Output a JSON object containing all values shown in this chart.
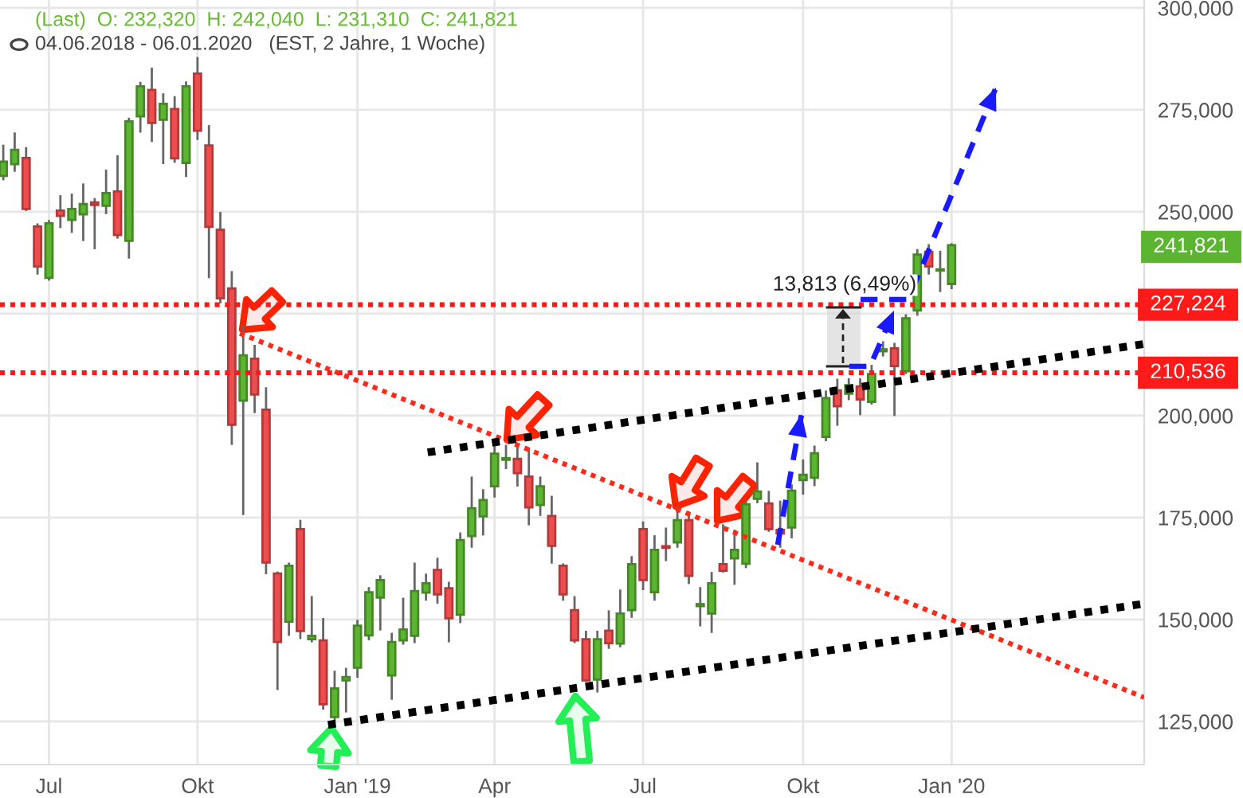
{
  "chart_data": {
    "type": "candlestick",
    "title": "(Last)  O: 232,320  H: 242,040  L: 231,310  C: 241,821",
    "subtitle": "04.06.2018 - 06.01.2020   (EST, 2 Jahre, 1 Woche)",
    "x": [
      "2018-06-04",
      "2018-06-11",
      "2018-06-18",
      "2018-06-25",
      "2018-07-02",
      "2018-07-09",
      "2018-07-16",
      "2018-07-23",
      "2018-07-30",
      "2018-08-06",
      "2018-08-13",
      "2018-08-20",
      "2018-08-27",
      "2018-09-03",
      "2018-09-10",
      "2018-09-17",
      "2018-09-24",
      "2018-10-01",
      "2018-10-08",
      "2018-10-15",
      "2018-10-22",
      "2018-10-29",
      "2018-11-05",
      "2018-11-12",
      "2018-11-19",
      "2018-11-26",
      "2018-12-03",
      "2018-12-10",
      "2018-12-17",
      "2018-12-24",
      "2018-12-31",
      "2019-01-07",
      "2019-01-14",
      "2019-01-21",
      "2019-01-28",
      "2019-02-04",
      "2019-02-11",
      "2019-02-18",
      "2019-02-25",
      "2019-03-04",
      "2019-03-11",
      "2019-03-18",
      "2019-03-25",
      "2019-04-01",
      "2019-04-08",
      "2019-04-15",
      "2019-04-22",
      "2019-04-29",
      "2019-05-06",
      "2019-05-13",
      "2019-05-20",
      "2019-05-27",
      "2019-06-03",
      "2019-06-10",
      "2019-06-17",
      "2019-06-24",
      "2019-07-01",
      "2019-07-08",
      "2019-07-15",
      "2019-07-22",
      "2019-07-29",
      "2019-08-05",
      "2019-08-12",
      "2019-08-19",
      "2019-08-26",
      "2019-09-02",
      "2019-09-09",
      "2019-09-16",
      "2019-09-23",
      "2019-09-30",
      "2019-10-07",
      "2019-10-14",
      "2019-10-21",
      "2019-10-28",
      "2019-11-04",
      "2019-11-11",
      "2019-11-18",
      "2019-11-25",
      "2019-12-02",
      "2019-12-09",
      "2019-12-16",
      "2019-12-23",
      "2019-12-30",
      "2020-01-06"
    ],
    "ohlc": [
      [
        258800,
        266200,
        258000,
        262300
      ],
      [
        261700,
        269200,
        260100,
        265200
      ],
      [
        263200,
        265600,
        250500,
        250700
      ],
      [
        246400,
        246900,
        234900,
        236600
      ],
      [
        233800,
        247700,
        233400,
        247200
      ],
      [
        250300,
        253800,
        246300,
        249000
      ],
      [
        248000,
        254200,
        245100,
        250700
      ],
      [
        249400,
        256700,
        243100,
        251900
      ],
      [
        252300,
        253100,
        241100,
        251700
      ],
      [
        251500,
        260100,
        249700,
        254600
      ],
      [
        255000,
        263600,
        243700,
        244300
      ],
      [
        242900,
        272800,
        238800,
        272200
      ],
      [
        273400,
        281600,
        269700,
        280800
      ],
      [
        279900,
        285100,
        267400,
        271800
      ],
      [
        272600,
        278800,
        262000,
        276500
      ],
      [
        275200,
        278100,
        262300,
        263100
      ],
      [
        262000,
        281700,
        258800,
        280800
      ],
      [
        283900,
        287700,
        267900,
        269900
      ],
      [
        266300,
        271000,
        234000,
        246300
      ],
      [
        245600,
        249700,
        227800,
        228800
      ],
      [
        231200,
        235200,
        193100,
        197800
      ],
      [
        203700,
        221900,
        175900,
        214800
      ],
      [
        214000,
        217100,
        200900,
        205200
      ],
      [
        201500,
        206700,
        161400,
        164000
      ],
      [
        161300,
        161500,
        133000,
        144500
      ],
      [
        149500,
        163700,
        146300,
        163200
      ],
      [
        172200,
        174200,
        145500,
        147200
      ],
      [
        145200,
        155500,
        144700,
        146000
      ],
      [
        144900,
        150100,
        128200,
        129200
      ],
      [
        126100,
        137200,
        124700,
        133100
      ],
      [
        135100,
        137900,
        127500,
        135900
      ],
      [
        138200,
        149700,
        136000,
        148500
      ],
      [
        146100,
        157700,
        145200,
        156700
      ],
      [
        155400,
        160600,
        147600,
        159700
      ],
      [
        136300,
        146500,
        130600,
        144500
      ],
      [
        144900,
        155100,
        144100,
        147600
      ],
      [
        146000,
        163700,
        144500,
        157000
      ],
      [
        156600,
        161000,
        154900,
        158900
      ],
      [
        162200,
        164900,
        154200,
        156200
      ],
      [
        157700,
        159000,
        144700,
        150300
      ],
      [
        151200,
        171100,
        149400,
        169500
      ],
      [
        170500,
        184800,
        167900,
        177300
      ],
      [
        175300,
        181700,
        170900,
        179300
      ],
      [
        182700,
        192400,
        180200,
        190700
      ],
      [
        189200,
        192600,
        187200,
        189600
      ],
      [
        189400,
        191900,
        182900,
        185900
      ],
      [
        185100,
        191900,
        173400,
        177500
      ],
      [
        178100,
        184800,
        175700,
        182700
      ],
      [
        175400,
        180100,
        164000,
        168100
      ],
      [
        163200,
        163500,
        154900,
        156200
      ],
      [
        152300,
        155500,
        144500,
        144900
      ],
      [
        145200,
        147000,
        135000,
        135100
      ],
      [
        135300,
        147000,
        132400,
        145200
      ],
      [
        147300,
        152000,
        143100,
        144200
      ],
      [
        144100,
        157100,
        143500,
        151500
      ],
      [
        152300,
        165300,
        150700,
        163600
      ],
      [
        172200,
        173800,
        157500,
        159700
      ],
      [
        156700,
        170400,
        154900,
        167100
      ],
      [
        168000,
        172300,
        164600,
        167600
      ],
      [
        168900,
        177700,
        167900,
        174400
      ],
      [
        174400,
        176300,
        159000,
        160700
      ],
      [
        153300,
        157700,
        148600,
        153800
      ],
      [
        151500,
        161400,
        147000,
        158900
      ],
      [
        163600,
        173100,
        161800,
        162000
      ],
      [
        165000,
        171800,
        158800,
        167100
      ],
      [
        163700,
        178900,
        162900,
        178300
      ],
      [
        179600,
        188300,
        178800,
        181400
      ],
      [
        178500,
        181300,
        171800,
        172200
      ],
      [
        172000,
        178900,
        167900,
        171100
      ],
      [
        172600,
        182900,
        170200,
        181600
      ],
      [
        184200,
        189000,
        180900,
        185500
      ],
      [
        184800,
        192400,
        183000,
        190800
      ],
      [
        194800,
        205900,
        194000,
        204300
      ],
      [
        206200,
        208800,
        197800,
        202300
      ],
      [
        205400,
        208900,
        204100,
        207500
      ],
      [
        207200,
        208900,
        200400,
        204000
      ],
      [
        203400,
        212200,
        203000,
        210200
      ],
      [
        215800,
        218000,
        214800,
        216300
      ],
      [
        216500,
        217600,
        200200,
        212200
      ],
      [
        210900,
        224600,
        210500,
        223900
      ],
      [
        225800,
        240600,
        224800,
        239500
      ],
      [
        240200,
        241800,
        234900,
        236600
      ],
      [
        235600,
        240200,
        230600,
        235900
      ],
      [
        232320,
        242040,
        231310,
        241821
      ]
    ],
    "colors": [
      "#5cb531",
      "#5cb531",
      "#ef4d4d",
      "#ef4d4d",
      "#5cb531",
      "#ef4d4d",
      "#5cb531",
      "#5cb531",
      "#ef4d4d",
      "#5cb531",
      "#ef4d4d",
      "#5cb531",
      "#5cb531",
      "#ef4d4d",
      "#5cb531",
      "#ef4d4d",
      "#5cb531",
      "#ef4d4d",
      "#ef4d4d",
      "#ef4d4d",
      "#ef4d4d",
      "#5cb531",
      "#ef4d4d",
      "#ef4d4d",
      "#ef4d4d",
      "#5cb531",
      "#ef4d4d",
      "#5cb531",
      "#ef4d4d",
      "#5cb531",
      "#5cb531",
      "#5cb531",
      "#5cb531",
      "#5cb531",
      "#5cb531",
      "#5cb531",
      "#5cb531",
      "#5cb531",
      "#ef4d4d",
      "#ef4d4d",
      "#5cb531",
      "#5cb531",
      "#5cb531",
      "#5cb531",
      "#5cb531",
      "#ef4d4d",
      "#ef4d4d",
      "#5cb531",
      "#ef4d4d",
      "#ef4d4d",
      "#ef4d4d",
      "#ef4d4d",
      "#5cb531",
      "#ef4d4d",
      "#5cb531",
      "#5cb531",
      "#ef4d4d",
      "#5cb531",
      "#ef4d4d",
      "#5cb531",
      "#ef4d4d",
      "#5cb531",
      "#5cb531",
      "#ef4d4d",
      "#5cb531",
      "#5cb531",
      "#5cb531",
      "#ef4d4d",
      "#ef4d4d",
      "#5cb531",
      "#5cb531",
      "#5cb531",
      "#5cb531",
      "#ef4d4d",
      "#5cb531",
      "#ef4d4d",
      "#5cb531",
      "#5cb531",
      "#ef4d4d",
      "#5cb531",
      "#5cb531",
      "#ef4d4d",
      "#5cb531",
      "#5cb531"
    ],
    "series": [
      {
        "type": "line",
        "color": "#ff2a1a",
        "line_style": "dotted",
        "x": [
          "2018-10-27",
          "2020-05-03"
        ],
        "values": [
          220200,
          130900
        ]
      },
      {
        "type": "line",
        "color": "#000000",
        "line_style": "dotted",
        "x": [
          "2019-02-19",
          "2020-05-03"
        ],
        "values": [
          191000,
          217600
        ]
      },
      {
        "type": "line",
        "color": "#000000",
        "line_style": "dotted",
        "x": [
          "2018-12-20",
          "2020-05-03"
        ],
        "values": [
          124200,
          153900
        ]
      }
    ],
    "ref_lines": [
      {
        "axis": "y",
        "value": 227224,
        "label": "227,224",
        "color": "#ff1a1a",
        "line_style": "dotted"
      },
      {
        "axis": "y",
        "value": 210536,
        "label": "210,536",
        "color": "#ff1a1a",
        "line_style": "dotted"
      }
    ],
    "annotations": [
      "241,821",
      "13,813 (6,49%)"
    ],
    "xlim": [
      "2018-06-02",
      "2020-05-03"
    ],
    "xticks": [
      {
        "value": "2018-07-02",
        "label": "Jul"
      },
      {
        "value": "2018-10-01",
        "label": "Okt"
      },
      {
        "value": "2019-01-07",
        "label": "Jan '19"
      },
      {
        "value": "2019-04-01",
        "label": "Apr"
      },
      {
        "value": "2019-07-01",
        "label": "Jul"
      },
      {
        "value": "2019-10-07",
        "label": "Okt"
      },
      {
        "value": "2020-01-06",
        "label": "Jan '20"
      }
    ],
    "ylim": [
      114450,
      301950
    ],
    "yticks": [
      {
        "value": 125000,
        "label": "125,000"
      },
      {
        "value": 150000,
        "label": "150,000"
      },
      {
        "value": 175000,
        "label": "175,000"
      },
      {
        "value": 200000,
        "label": "200,000"
      },
      {
        "value": 225000,
        "label": null
      },
      {
        "value": 250000,
        "label": "250,000"
      },
      {
        "value": 275000,
        "label": "275,000"
      },
      {
        "value": 300000,
        "label": "300,000"
      }
    ],
    "grid": true
  }
}
